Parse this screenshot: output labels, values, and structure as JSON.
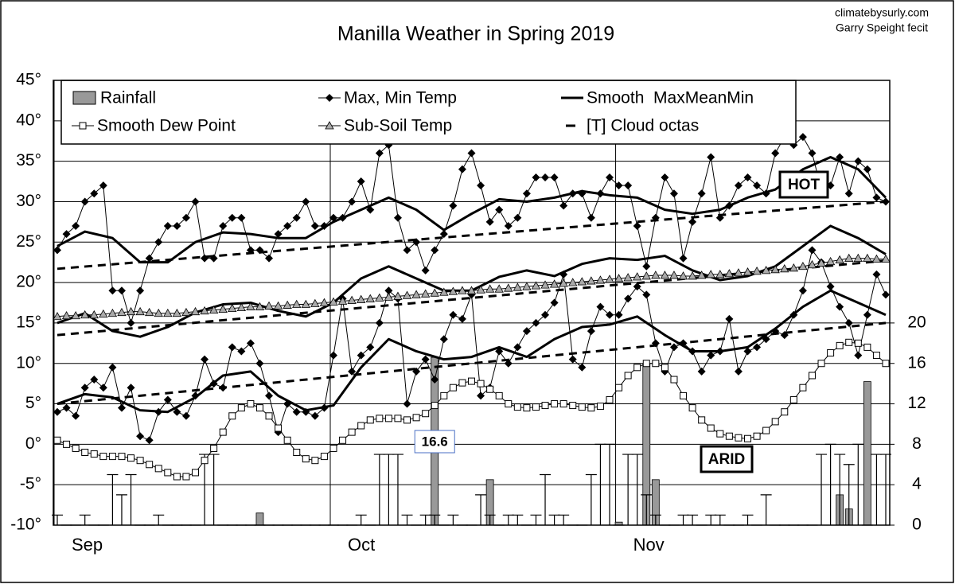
{
  "chart_data": {
    "type": "line",
    "title": "Manilla Weather in Spring 2019",
    "credit": [
      "climatebysurly.com",
      "Garry Speight fecit"
    ],
    "annotations": {
      "hot": "HOT",
      "arid": "ARID"
    },
    "xlim": [
      0,
      90
    ],
    "xticks": [
      {
        "value": 0,
        "label": "Sep"
      },
      {
        "value": 30,
        "label": "Oct"
      },
      {
        "value": 61,
        "label": "Nov"
      }
    ],
    "ylim": [
      -10,
      45
    ],
    "yticks": [
      {
        "value": -10,
        "label": "-10°"
      },
      {
        "value": -5,
        "label": "-5°"
      },
      {
        "value": 0,
        "label": "0°"
      },
      {
        "value": 5,
        "label": "5°"
      },
      {
        "value": 10,
        "label": "10°"
      },
      {
        "value": 15,
        "label": "15°"
      },
      {
        "value": 20,
        "label": "20°"
      },
      {
        "value": 25,
        "label": "25°"
      },
      {
        "value": 30,
        "label": "30°"
      },
      {
        "value": 35,
        "label": "35°"
      },
      {
        "value": 40,
        "label": "40°"
      },
      {
        "value": 45,
        "label": "45°"
      }
    ],
    "y2lim": [
      0,
      44
    ],
    "y2ticks": [
      0,
      4,
      8,
      12,
      16,
      20
    ],
    "grid": true,
    "series": [
      {
        "name": "Rainfall",
        "kind": "bar",
        "axis": "y2",
        "color": "#999999",
        "values": [
          0,
          0,
          0,
          0,
          0,
          0,
          0,
          0,
          0,
          0,
          0,
          0,
          0,
          0,
          0,
          0,
          0,
          0,
          0,
          0,
          0,
          0,
          1.2,
          0,
          0,
          0,
          0,
          0,
          0,
          0,
          0,
          0,
          0,
          0,
          0,
          0,
          0,
          0,
          0,
          0,
          0,
          16.6,
          0,
          0,
          0,
          0,
          0,
          4.5,
          0,
          0,
          0,
          0,
          0,
          0,
          0,
          0,
          0,
          0,
          0,
          0,
          0,
          0.3,
          0,
          0,
          16.0,
          4.5,
          0,
          0,
          0,
          0,
          0,
          0,
          0,
          0,
          0,
          0,
          0,
          0,
          0,
          0,
          0,
          0,
          0,
          0,
          0,
          3,
          1.6,
          0,
          14.2,
          0,
          0
        ]
      },
      {
        "name": "Max, Min Temp",
        "kind": "line",
        "marker": "diamond",
        "color": "#000000",
        "width": 1,
        "lines": [
          {
            "values": [
              24,
              26,
              27,
              30,
              31,
              32,
              19,
              19,
              15,
              19,
              23,
              25,
              27,
              27,
              28,
              30,
              23,
              23,
              27,
              28,
              28,
              24,
              24,
              23,
              26,
              27,
              28,
              30,
              27,
              27,
              28,
              28,
              30,
              32.5,
              29,
              36,
              37,
              28,
              24,
              25,
              21.5,
              24,
              26,
              29.5,
              34,
              36,
              32,
              27.5,
              29,
              27,
              28,
              31,
              33,
              33,
              33,
              29.5,
              31,
              31,
              28,
              31,
              33,
              32,
              32,
              27,
              22,
              28,
              33,
              31,
              23,
              27.5,
              31,
              35.5,
              28,
              29.5,
              32,
              33,
              32,
              31,
              36,
              38,
              37,
              38,
              36,
              31.5,
              32,
              35.5,
              31,
              35,
              34,
              30.5,
              30
            ]
          },
          {
            "values": [
              4,
              4.5,
              3.5,
              7,
              8,
              7,
              9.5,
              4.5,
              7,
              1,
              0.5,
              4,
              5.5,
              4,
              3.5,
              6,
              10.5,
              7.5,
              7,
              12,
              11.5,
              12.5,
              10,
              6,
              1.5,
              5,
              4,
              4,
              3.5,
              4.5,
              11,
              18,
              9,
              11,
              12,
              15,
              19,
              18,
              5,
              9,
              10.5,
              8,
              13,
              16,
              15.5,
              18.5,
              6,
              7,
              11.5,
              10,
              12,
              14,
              15,
              16,
              17.5,
              21,
              10.5,
              9.5,
              14,
              17,
              16,
              16,
              18,
              19.5,
              18.5,
              12.5,
              9,
              12,
              12.5,
              11.5,
              9,
              11,
              11.5,
              15.5,
              9,
              11.5,
              12,
              13,
              14,
              13.5,
              16,
              19,
              24,
              22.5,
              19.5,
              17,
              15,
              11,
              16,
              21,
              18.5
            ]
          }
        ]
      },
      {
        "name": "Smooth  MaxMeanMin",
        "kind": "line",
        "marker": "none",
        "color": "#000000",
        "width": 3,
        "lines": [
          {
            "x": [
              0,
              3,
              6,
              9,
              12,
              15,
              18,
              21,
              24,
              27,
              30,
              33,
              36,
              39,
              42,
              45,
              48,
              51,
              54,
              57,
              60,
              63,
              66,
              69,
              72,
              75,
              78,
              81,
              84,
              87,
              90
            ],
            "values": [
              24.5,
              26.3,
              25.5,
              22.5,
              22.5,
              25,
              26.2,
              26,
              25.5,
              25.5,
              27.5,
              29,
              30.5,
              29,
              26.5,
              28.5,
              30.3,
              30,
              30.5,
              31.3,
              30.8,
              30.5,
              29,
              28.5,
              29,
              30.5,
              31.5,
              34,
              35.5,
              34,
              30.5
            ]
          },
          {
            "x": [
              0,
              3,
              6,
              9,
              12,
              15,
              18,
              21,
              24,
              27,
              30,
              33,
              36,
              39,
              42,
              45,
              48,
              51,
              54,
              57,
              60,
              63,
              66,
              69,
              72,
              75,
              78,
              81,
              84,
              87,
              90
            ],
            "values": [
              15,
              16.2,
              14,
              13.3,
              14.5,
              16.3,
              17.3,
              17.5,
              16.5,
              15.8,
              17.5,
              20.5,
              22,
              20.5,
              19,
              19,
              20.7,
              21.5,
              20.8,
              22.3,
              23,
              22.8,
              23.3,
              21.5,
              20.3,
              20.8,
              22,
              24.5,
              27,
              25.5,
              23.5
            ]
          },
          {
            "x": [
              0,
              3,
              6,
              9,
              12,
              15,
              18,
              21,
              24,
              27,
              30,
              33,
              36,
              39,
              42,
              45,
              48,
              51,
              54,
              57,
              60,
              63,
              66,
              69,
              72,
              75,
              78,
              81,
              84,
              87,
              90
            ],
            "values": [
              5,
              6.2,
              5.8,
              4.2,
              4,
              5.8,
              8.5,
              9,
              6,
              4.2,
              4.8,
              9.5,
              13,
              11.5,
              10.5,
              10.8,
              12,
              10.8,
              13,
              14.5,
              14.8,
              15.8,
              13.5,
              11.5,
              11.5,
              12,
              14.3,
              17,
              19,
              17.5,
              16
            ]
          }
        ]
      },
      {
        "name": "Smooth Dew Point",
        "kind": "line",
        "marker": "square",
        "color": "#000000",
        "width": 1,
        "lines": [
          {
            "values": [
              0.5,
              0,
              -0.5,
              -1,
              -1.2,
              -1.5,
              -1.5,
              -1.5,
              -1.7,
              -2,
              -2.5,
              -3,
              -3.5,
              -4,
              -4,
              -3.5,
              -2,
              -0.5,
              1.5,
              3.5,
              4.5,
              5,
              4.5,
              3.5,
              2,
              0.5,
              -1,
              -1.8,
              -2,
              -1.5,
              -0.5,
              0.5,
              1.5,
              2.3,
              3,
              3.2,
              3.2,
              3.2,
              3,
              3.3,
              3.8,
              4.8,
              6,
              7,
              7.6,
              7.8,
              7.5,
              6.8,
              6,
              5,
              4.6,
              4.5,
              4.6,
              4.8,
              5,
              5,
              4.8,
              4.6,
              4.5,
              4.7,
              5.5,
              7,
              8.5,
              9.5,
              10,
              10,
              9.5,
              8,
              6,
              4.5,
              3,
              2,
              1.3,
              1,
              0.8,
              0.7,
              1,
              1.7,
              2.8,
              4,
              5.5,
              7,
              8.5,
              10,
              11.3,
              12.2,
              12.6,
              12.5,
              12,
              11,
              10
            ]
          }
        ]
      },
      {
        "name": "Sub-Soil Temp",
        "kind": "line",
        "marker": "triangle",
        "color": "#000000",
        "width": 1,
        "lines": [
          {
            "values": [
              15.8,
              15.9,
              15.9,
              16,
              16,
              16.1,
              16.2,
              16.3,
              16.4,
              16.4,
              16.3,
              16.2,
              16.2,
              16.2,
              16.3,
              16.4,
              16.5,
              16.6,
              16.7,
              16.8,
              16.9,
              17,
              17,
              17.1,
              17.1,
              17.2,
              17.3,
              17.3,
              17.4,
              17.5,
              17.6,
              17.7,
              17.8,
              17.9,
              18,
              18.1,
              18.2,
              18.3,
              18.4,
              18.5,
              18.6,
              18.7,
              18.8,
              18.9,
              19,
              19,
              19.1,
              19.2,
              19.2,
              19.3,
              19.4,
              19.5,
              19.6,
              19.7,
              19.8,
              19.9,
              20,
              20.1,
              20.2,
              20.3,
              20.4,
              20.5,
              20.6,
              20.7,
              20.8,
              20.9,
              20.9,
              20.9,
              20.8,
              20.8,
              20.9,
              21,
              21,
              21.1,
              21.2,
              21.3,
              21.4,
              21.5,
              21.6,
              21.7,
              21.8,
              22,
              22.2,
              22.4,
              22.6,
              22.8,
              23,
              23,
              23,
              22.9,
              22.9
            ]
          }
        ]
      },
      {
        "name": "[T] Cloud octas",
        "kind": "cloud",
        "axis": "y2",
        "color": "#000000",
        "values": [
          1,
          0,
          0,
          1,
          0,
          0,
          5,
          3,
          5,
          0,
          0,
          1,
          0,
          0,
          0,
          0,
          7,
          7,
          0,
          0,
          0,
          0,
          0,
          0,
          0,
          0,
          0,
          0,
          0,
          0,
          0,
          0,
          0,
          1,
          0,
          7,
          7,
          7,
          1,
          0,
          1,
          1,
          0,
          1,
          0,
          0,
          3,
          1,
          0,
          1,
          1,
          0,
          1,
          5,
          1,
          1,
          0,
          0,
          5,
          8,
          8,
          0,
          7,
          7,
          3,
          1,
          0,
          0,
          1,
          1,
          0,
          1,
          1,
          0,
          0,
          1,
          0,
          3,
          0,
          0,
          0,
          0,
          0,
          7,
          8,
          7,
          6,
          8,
          0,
          7,
          7
        ]
      }
    ],
    "trend_lines": [
      {
        "x": [
          0,
          90
        ],
        "values": [
          21.7,
          30
        ]
      },
      {
        "x": [
          0,
          90
        ],
        "values": [
          13.5,
          22.7
        ]
      },
      {
        "x": [
          0,
          90
        ],
        "values": [
          5,
          15
        ]
      }
    ]
  }
}
